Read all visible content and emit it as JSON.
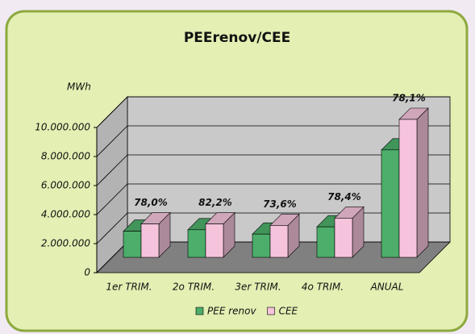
{
  "chart_data": {
    "type": "bar3d",
    "title": "PEErenov/CEE",
    "y_label": "MWh",
    "categories": [
      "1er TRIM.",
      "2o TRIM.",
      "3er TRIM.",
      "4o TRIM.",
      "ANUAL"
    ],
    "series": [
      {
        "name": "PEE renov",
        "color": "#4cae6a",
        "values": [
          1800000,
          1900000,
          1600000,
          2100000,
          7400000
        ]
      },
      {
        "name": "CEE",
        "color": "#f5c3dc",
        "values": [
          2300000,
          2300000,
          2200000,
          2700000,
          9500000
        ]
      }
    ],
    "annotations": [
      "78,0%",
      "82,2%",
      "73,6%",
      "78,4%",
      "78,1%"
    ],
    "ylim": [
      0,
      10000000
    ],
    "yticks": [
      0,
      {
        "value": 2000000,
        "label": "2.000.000"
      },
      {
        "value": 4000000,
        "label": "4.000.000"
      },
      {
        "value": 6000000,
        "label": "6.000.000"
      },
      {
        "value": 8000000,
        "label": "8.000.000"
      },
      {
        "value": 10000000,
        "label": "10.000.000"
      }
    ],
    "grid": true
  }
}
